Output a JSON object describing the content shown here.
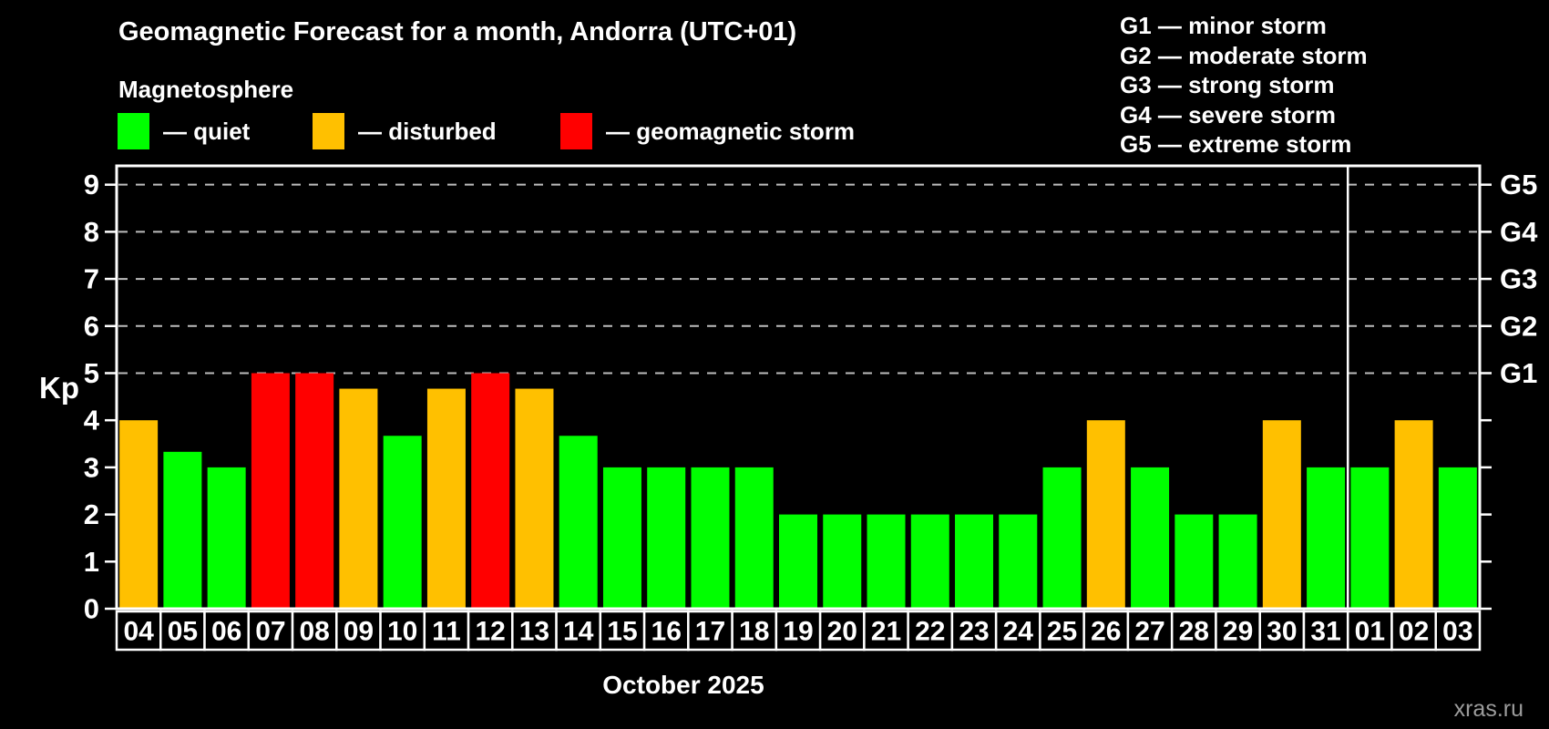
{
  "header": {
    "title": "Geomagnetic Forecast for a month, Andorra (UTC+01)",
    "subtitle": "Magnetosphere"
  },
  "legend": {
    "items": [
      {
        "key": "quiet",
        "label": "— quiet",
        "color": "#00ff00"
      },
      {
        "key": "disturbed",
        "label": "— disturbed",
        "color": "#ffc000"
      },
      {
        "key": "storm",
        "label": "— geomagnetic storm",
        "color": "#ff0000"
      }
    ]
  },
  "storm_scale_legend": [
    "G1 — minor storm",
    "G2 — moderate storm",
    "G3 — strong storm",
    "G4 — severe storm",
    "G5 — extreme storm"
  ],
  "footer": {
    "month_label": "October 2025",
    "watermark": "xras.ru"
  },
  "chart_data": {
    "type": "bar",
    "title": "Geomagnetic Forecast for a month, Andorra (UTC+01)",
    "subtitle": "Magnetosphere",
    "xlabel": "October 2025",
    "ylabel": "Kp",
    "ylim": [
      0,
      9.4
    ],
    "yticks": [
      0,
      1,
      2,
      3,
      4,
      5,
      6,
      7,
      8,
      9
    ],
    "grid_levels": [
      5,
      6,
      7,
      8,
      9
    ],
    "grid_style": "dashed horizontal lines at storm levels only",
    "right_axis_labels": [
      {
        "value": 5,
        "label": "G1"
      },
      {
        "value": 6,
        "label": "G2"
      },
      {
        "value": 7,
        "label": "G3"
      },
      {
        "value": 8,
        "label": "G4"
      },
      {
        "value": 9,
        "label": "G5"
      }
    ],
    "month_separator_after": "31",
    "categories": [
      "04",
      "05",
      "06",
      "07",
      "08",
      "09",
      "10",
      "11",
      "12",
      "13",
      "14",
      "15",
      "16",
      "17",
      "18",
      "19",
      "20",
      "21",
      "22",
      "23",
      "24",
      "25",
      "26",
      "27",
      "28",
      "29",
      "30",
      "31",
      "01",
      "02",
      "03"
    ],
    "values": [
      4,
      3.33,
      3,
      5,
      5,
      4.67,
      3.67,
      4.67,
      5,
      4.67,
      3.67,
      3,
      3,
      3,
      3,
      2,
      2,
      2,
      2,
      2,
      2,
      3,
      4,
      3,
      2,
      2,
      4,
      3,
      3,
      4,
      3
    ],
    "statuses": [
      "disturbed",
      "quiet",
      "quiet",
      "storm",
      "storm",
      "disturbed",
      "quiet",
      "disturbed",
      "storm",
      "disturbed",
      "quiet",
      "quiet",
      "quiet",
      "quiet",
      "quiet",
      "quiet",
      "quiet",
      "quiet",
      "quiet",
      "quiet",
      "quiet",
      "quiet",
      "disturbed",
      "quiet",
      "quiet",
      "quiet",
      "disturbed",
      "quiet",
      "quiet",
      "disturbed",
      "quiet"
    ],
    "status_colors": {
      "quiet": "#00ff00",
      "disturbed": "#ffc000",
      "storm": "#ff0000"
    }
  }
}
